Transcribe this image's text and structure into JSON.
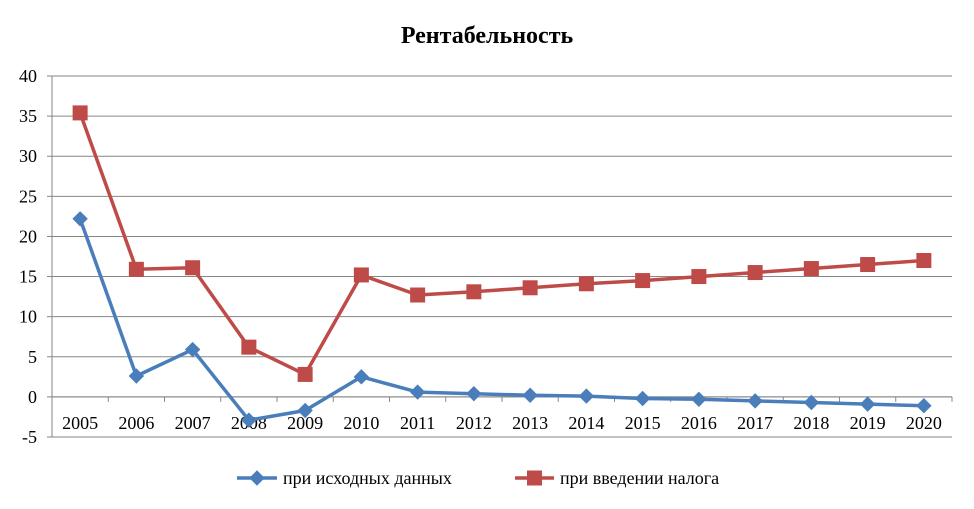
{
  "chart_data": {
    "type": "line",
    "title": "Рентабельность",
    "xlabel": "",
    "ylabel": "",
    "categories": [
      "2005",
      "2006",
      "2007",
      "2008",
      "2009",
      "2010",
      "2011",
      "2012",
      "2013",
      "2014",
      "2015",
      "2016",
      "2017",
      "2018",
      "2019",
      "2020"
    ],
    "ylim": [
      -5,
      40
    ],
    "yticks": [
      -5,
      0,
      5,
      10,
      15,
      20,
      25,
      30,
      35,
      40
    ],
    "grid": true,
    "legend_position": "bottom",
    "series": [
      {
        "name": "при исходных данных",
        "color": "#4A7EBB",
        "marker": "diamond",
        "values": [
          22.2,
          2.6,
          5.9,
          -2.9,
          -1.7,
          2.5,
          0.6,
          0.4,
          0.2,
          0.1,
          -0.2,
          -0.3,
          -0.5,
          -0.7,
          -0.9,
          -1.1
        ]
      },
      {
        "name": "при введении налога",
        "color": "#BE4B48",
        "marker": "square",
        "values": [
          35.4,
          15.9,
          16.1,
          6.2,
          2.8,
          15.2,
          12.7,
          13.1,
          13.6,
          14.1,
          14.5,
          15.0,
          15.5,
          16.0,
          16.5,
          17.0
        ]
      }
    ]
  }
}
